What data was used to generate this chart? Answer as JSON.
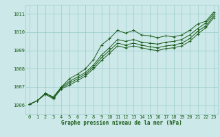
{
  "xlabel": "Graphe pression niveau de la mer (hPa)",
  "bg_color": "#cce8e8",
  "grid_color": "#99cccc",
  "line_color": "#1a5c1a",
  "x_min": -0.5,
  "x_max": 23.5,
  "y_min": 1005.5,
  "y_max": 1011.5,
  "y_ticks": [
    1006,
    1007,
    1008,
    1009,
    1010,
    1011
  ],
  "x_ticks": [
    0,
    1,
    2,
    3,
    4,
    5,
    6,
    7,
    8,
    9,
    10,
    11,
    12,
    13,
    14,
    15,
    16,
    17,
    18,
    19,
    20,
    21,
    22,
    23
  ],
  "series": [
    [
      1006.05,
      1006.25,
      1006.65,
      1006.45,
      1007.0,
      1007.45,
      1007.7,
      1008.0,
      1008.5,
      1009.3,
      1009.65,
      1010.1,
      1009.95,
      1010.1,
      1009.85,
      1009.8,
      1009.7,
      1009.8,
      1009.75,
      1009.85,
      1010.1,
      1010.45,
      1010.6,
      1011.1
    ],
    [
      1006.05,
      1006.25,
      1006.65,
      1006.45,
      1007.0,
      1007.3,
      1007.55,
      1007.8,
      1008.2,
      1008.75,
      1009.15,
      1009.6,
      1009.5,
      1009.6,
      1009.45,
      1009.4,
      1009.35,
      1009.45,
      1009.5,
      1009.6,
      1009.85,
      1010.2,
      1010.5,
      1011.0
    ],
    [
      1006.05,
      1006.25,
      1006.65,
      1006.4,
      1006.95,
      1007.2,
      1007.45,
      1007.7,
      1008.1,
      1008.6,
      1009.0,
      1009.4,
      1009.3,
      1009.4,
      1009.3,
      1009.2,
      1009.15,
      1009.25,
      1009.3,
      1009.4,
      1009.65,
      1010.05,
      1010.35,
      1010.9
    ],
    [
      1006.05,
      1006.25,
      1006.6,
      1006.35,
      1006.9,
      1007.1,
      1007.35,
      1007.6,
      1008.0,
      1008.45,
      1008.85,
      1009.25,
      1009.15,
      1009.25,
      1009.15,
      1009.05,
      1009.0,
      1009.1,
      1009.15,
      1009.25,
      1009.5,
      1009.9,
      1010.25,
      1010.8
    ]
  ]
}
